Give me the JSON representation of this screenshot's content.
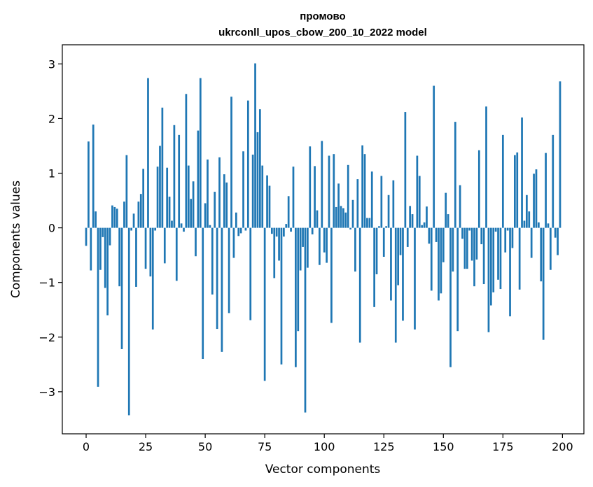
{
  "chart_data": {
    "type": "bar",
    "title_line1": "промово",
    "title_line2": "ukrconll_upos_cbow_200_10_2022 model",
    "xlabel": "Vector components",
    "ylabel": "Components values",
    "xlim": [
      -10,
      209
    ],
    "ylim": [
      -3.77,
      3.35
    ],
    "xticks": [
      0,
      25,
      50,
      75,
      100,
      125,
      150,
      175,
      200
    ],
    "xtick_labels": [
      "0",
      "25",
      "50",
      "75",
      "100",
      "125",
      "150",
      "175",
      "200"
    ],
    "yticks": [
      -3,
      -2,
      -1,
      0,
      1,
      2,
      3
    ],
    "ytick_labels": [
      "−3",
      "−2",
      "−1",
      "0",
      "1",
      "2",
      "3"
    ],
    "bar_color": "#1f77b4",
    "grid": false,
    "x": [
      0,
      1,
      2,
      3,
      4,
      5,
      6,
      7,
      8,
      9,
      10,
      11,
      12,
      13,
      14,
      15,
      16,
      17,
      18,
      19,
      20,
      21,
      22,
      23,
      24,
      25,
      26,
      27,
      28,
      29,
      30,
      31,
      32,
      33,
      34,
      35,
      36,
      37,
      38,
      39,
      40,
      41,
      42,
      43,
      44,
      45,
      46,
      47,
      48,
      49,
      50,
      51,
      52,
      53,
      54,
      55,
      56,
      57,
      58,
      59,
      60,
      61,
      62,
      63,
      64,
      65,
      66,
      67,
      68,
      69,
      70,
      71,
      72,
      73,
      74,
      75,
      76,
      77,
      78,
      79,
      80,
      81,
      82,
      83,
      84,
      85,
      86,
      87,
      88,
      89,
      90,
      91,
      92,
      93,
      94,
      95,
      96,
      97,
      98,
      99,
      100,
      101,
      102,
      103,
      104,
      105,
      106,
      107,
      108,
      109,
      110,
      111,
      112,
      113,
      114,
      115,
      116,
      117,
      118,
      119,
      120,
      121,
      122,
      123,
      124,
      125,
      126,
      127,
      128,
      129,
      130,
      131,
      132,
      133,
      134,
      135,
      136,
      137,
      138,
      139,
      140,
      141,
      142,
      143,
      144,
      145,
      146,
      147,
      148,
      149,
      150,
      151,
      152,
      153,
      154,
      155,
      156,
      157,
      158,
      159,
      160,
      161,
      162,
      163,
      164,
      165,
      166,
      167,
      168,
      169,
      170,
      171,
      172,
      173,
      174,
      175,
      176,
      177,
      178,
      179,
      180,
      181,
      182,
      183,
      184,
      185,
      186,
      187,
      188,
      189,
      190,
      191,
      192,
      193,
      194,
      195,
      196,
      197,
      198,
      199
    ],
    "values": [
      -0.33,
      1.58,
      -0.78,
      1.89,
      0.3,
      -2.91,
      -0.77,
      -0.17,
      -1.1,
      -1.6,
      -0.32,
      0.41,
      0.38,
      0.35,
      -1.07,
      -2.22,
      0.48,
      1.33,
      -3.43,
      -0.05,
      0.26,
      -1.08,
      0.48,
      0.62,
      1.08,
      -0.75,
      2.74,
      -0.89,
      -1.86,
      -0.05,
      1.12,
      1.5,
      2.2,
      -0.65,
      1.1,
      0.57,
      0.13,
      1.88,
      -0.97,
      1.7,
      0.08,
      -0.07,
      2.45,
      1.14,
      0.53,
      0.85,
      -0.52,
      1.78,
      2.74,
      -2.4,
      0.45,
      1.25,
      0.05,
      -1.22,
      0.66,
      -1.85,
      1.29,
      -2.27,
      0.98,
      0.83,
      -1.56,
      2.4,
      -0.55,
      0.28,
      -0.15,
      -0.1,
      1.4,
      -0.05,
      2.33,
      -1.69,
      1.34,
      3.01,
      1.75,
      2.17,
      1.14,
      -2.8,
      0.96,
      0.77,
      -0.11,
      -0.92,
      -0.16,
      -0.6,
      -2.5,
      -0.16,
      0.07,
      0.58,
      -0.07,
      1.12,
      -2.55,
      -1.89,
      -0.78,
      -0.35,
      -3.38,
      -0.73,
      1.49,
      -0.12,
      1.13,
      0.32,
      -0.68,
      1.59,
      -0.45,
      -0.64,
      1.32,
      -1.74,
      1.35,
      0.38,
      0.81,
      0.4,
      0.36,
      0.28,
      1.15,
      -0.03,
      0.51,
      -0.8,
      0.89,
      -2.1,
      1.51,
      1.35,
      0.18,
      0.18,
      1.03,
      -1.45,
      -0.85,
      0.03,
      0.95,
      -0.53,
      0.03,
      0.6,
      -1.33,
      0.87,
      -2.1,
      -1.05,
      -0.5,
      -1.7,
      2.12,
      -0.35,
      0.4,
      0.25,
      -1.86,
      1.32,
      0.95,
      0.05,
      0.1,
      0.39,
      -0.29,
      -1.15,
      2.6,
      -0.26,
      -1.33,
      -1.2,
      -0.63,
      0.64,
      0.25,
      -2.55,
      -0.8,
      1.94,
      -1.89,
      0.78,
      -0.2,
      -0.75,
      -0.75,
      -0.05,
      -0.6,
      -1.07,
      -0.58,
      1.42,
      -0.3,
      -1.03,
      2.22,
      -1.91,
      -1.42,
      -1.18,
      -0.07,
      -0.95,
      -1.12,
      1.7,
      -0.45,
      -0.05,
      -1.62,
      -0.37,
      1.33,
      1.38,
      -1.13,
      2.02,
      0.13,
      0.6,
      0.3,
      -0.55,
      0.99,
      1.07,
      0.1,
      -0.98,
      -2.05,
      1.37,
      0.08,
      -0.77,
      1.7,
      -0.18,
      -0.5,
      2.68
    ]
  }
}
